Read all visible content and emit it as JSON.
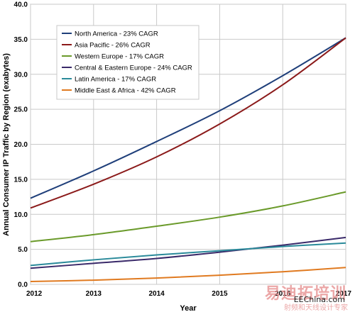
{
  "chart_data": {
    "type": "line",
    "title": "",
    "xlabel": "Year",
    "ylabel": "Annual Consumer IP Traffic by Region (exabytes)",
    "x": [
      2012,
      2013,
      2014,
      2015,
      2016,
      2017
    ],
    "x_tick_labels": [
      "2012",
      "2013",
      "2014",
      "2015",
      "2016",
      "2017"
    ],
    "y_tick_labels": [
      "0.0",
      "5.0",
      "10.0",
      "15.0",
      "20.0",
      "25.0",
      "30.0",
      "35.0",
      "40.0"
    ],
    "ylim": [
      0,
      40
    ],
    "xlim": [
      2012,
      2017
    ],
    "grid": true,
    "legend_position": "top-left",
    "series": [
      {
        "name": "North America - 23% CAGR",
        "color": "#1f3f7a",
        "values": [
          12.3,
          16.2,
          20.4,
          24.8,
          29.8,
          35.2
        ]
      },
      {
        "name": "Asia Pacific - 26% CAGR",
        "color": "#8b1a1a",
        "values": [
          10.9,
          14.3,
          18.2,
          22.9,
          28.5,
          35.2
        ]
      },
      {
        "name": "Western Europe - 17% CAGR",
        "color": "#6a9a2a",
        "values": [
          6.1,
          7.1,
          8.3,
          9.6,
          11.2,
          13.2
        ]
      },
      {
        "name": "Central & Eastern Europe - 24% CAGR",
        "color": "#3a2a6a",
        "values": [
          2.3,
          3.0,
          3.7,
          4.6,
          5.6,
          6.7
        ]
      },
      {
        "name": "Latin America - 17% CAGR",
        "color": "#2a8a9a",
        "values": [
          2.7,
          3.5,
          4.2,
          4.8,
          5.4,
          5.9
        ]
      },
      {
        "name": "Middle East & Africa - 42% CAGR",
        "color": "#e07a20",
        "values": [
          0.4,
          0.6,
          0.9,
          1.3,
          1.8,
          2.4
        ]
      }
    ]
  },
  "watermark": {
    "site": "EEChina.com",
    "cn_line1": "易迪拓培训",
    "cn_line2": "射频和天线设计专家"
  }
}
